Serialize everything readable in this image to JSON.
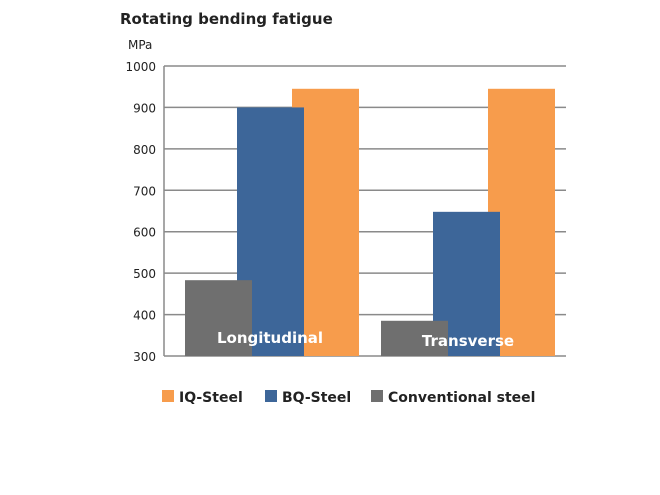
{
  "chart_data": {
    "type": "bar",
    "title": "Rotating bending fatigue",
    "ylabel": "MPa",
    "xlabel": "",
    "ylim": [
      300,
      1000
    ],
    "yticks": [
      300,
      400,
      500,
      600,
      700,
      800,
      900,
      1000
    ],
    "categories": [
      "Longitudinal",
      "Transverse"
    ],
    "series": [
      {
        "name": "IQ-Steel",
        "color": "#f79c4c",
        "values": [
          945,
          945
        ]
      },
      {
        "name": "BQ-Steel",
        "color": "#3d6699",
        "values": [
          900,
          648
        ]
      },
      {
        "name": "Conventional steel",
        "color": "#6f6f6f",
        "values": [
          483,
          385
        ]
      }
    ],
    "grid": true,
    "legend_position": "bottom"
  }
}
